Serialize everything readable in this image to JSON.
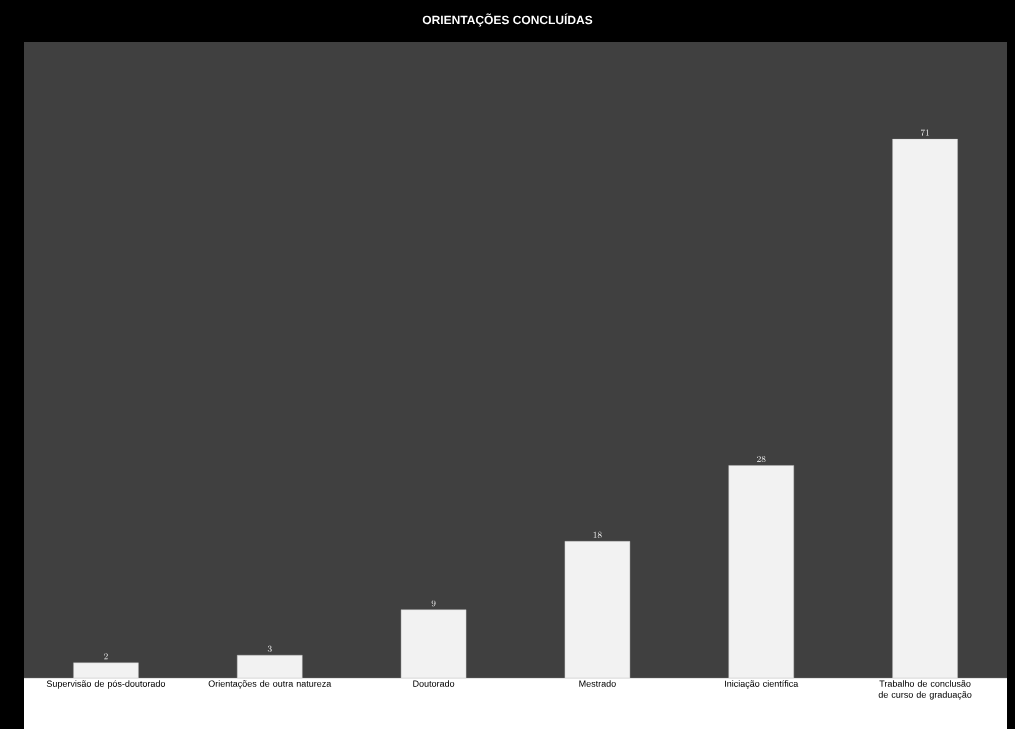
{
  "chart_data": {
    "type": "bar",
    "title": "ORIENTAÇÕES CONCLUÍDAS",
    "categories": [
      "Supervisão de pós-doutorado",
      "Orientações de outra natureza",
      "Doutorado",
      "Mestrado",
      "Iniciação científica",
      "Trabalho de conclusão de curso de graduação"
    ],
    "values": [
      2,
      3,
      9,
      18,
      28,
      71
    ],
    "color": "#f2f2f2",
    "data_labels": true
  }
}
